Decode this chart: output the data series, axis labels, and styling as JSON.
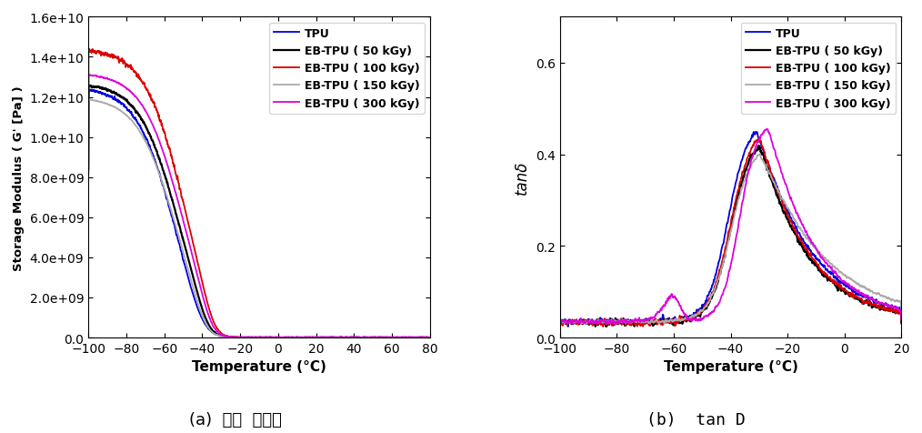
{
  "left_plot": {
    "title": "(a)  저장  탄성율",
    "xlabel": "Temperature (°C)",
    "ylabel": "Storage Modulus ( G' [Pa] )",
    "xlim": [
      -100,
      80
    ],
    "ylim": [
      0,
      16000000000.0
    ],
    "xticks": [
      -100,
      -80,
      -60,
      -40,
      -20,
      0,
      20,
      40,
      60,
      80
    ],
    "yticks": [
      0.0,
      2000000000.0,
      4000000000.0,
      6000000000.0,
      8000000000.0,
      10000000000.0,
      12000000000.0,
      14000000000.0,
      16000000000.0
    ],
    "series": [
      {
        "label": "TPU",
        "color": "#0000dd",
        "lw": 1.3
      },
      {
        "label": "EB-TPU ( 50 kGy)",
        "color": "#000000",
        "lw": 1.6
      },
      {
        "label": "EB-TPU ( 100 kGy)",
        "color": "#dd0000",
        "lw": 1.3
      },
      {
        "label": "EB-TPU ( 150 kGy)",
        "color": "#aaaaaa",
        "lw": 1.3
      },
      {
        "label": "EB-TPU ( 300 kGy)",
        "color": "#dd00dd",
        "lw": 1.3
      }
    ]
  },
  "right_plot": {
    "title": "(b)  tan D",
    "xlabel": "Temperature (°C)",
    "ylabel": "tanδ",
    "xlim": [
      -100,
      20
    ],
    "ylim": [
      0,
      0.7
    ],
    "xticks": [
      -100,
      -80,
      -60,
      -40,
      -20,
      0,
      20
    ],
    "yticks": [
      0.0,
      0.2,
      0.4,
      0.6
    ],
    "series": [
      {
        "label": "TPU",
        "color": "#0000dd",
        "lw": 1.3
      },
      {
        "label": "EB-TPU ( 50 kGy)",
        "color": "#000000",
        "lw": 1.6
      },
      {
        "label": "EB-TPU ( 100 kGy)",
        "color": "#dd0000",
        "lw": 1.3
      },
      {
        "label": "EB-TPU ( 150 kGy)",
        "color": "#aaaaaa",
        "lw": 1.3
      },
      {
        "label": "EB-TPU ( 300 kGy)",
        "color": "#dd00dd",
        "lw": 1.3
      }
    ]
  }
}
